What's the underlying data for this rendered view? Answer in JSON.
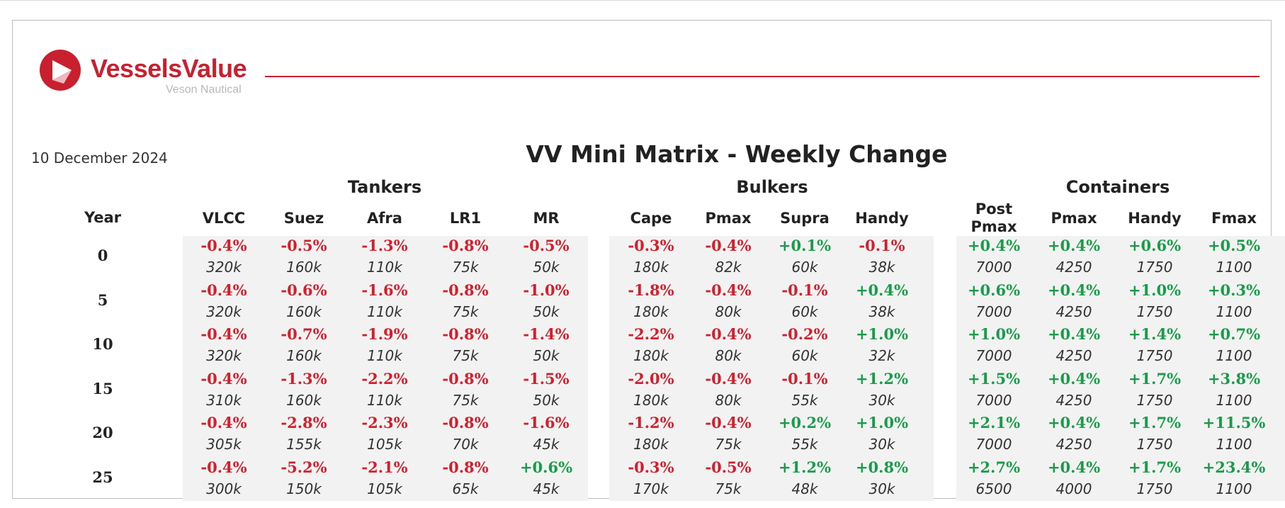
{
  "brand": {
    "name": "VesselsValue",
    "tagline": "Veson Nautical",
    "color": "#c8202f"
  },
  "date": "10 December 2024",
  "title": "VV Mini Matrix - Weekly Change",
  "year_label": "Year",
  "colors": {
    "negative": "#d0202e",
    "positive": "#1a9b4a"
  },
  "groups": [
    {
      "name": "Tankers",
      "columns": [
        {
          "name": "VLCC",
          "rows": [
            {
              "pct": "-0.4%",
              "size": "320k"
            },
            {
              "pct": "-0.4%",
              "size": "320k"
            },
            {
              "pct": "-0.4%",
              "size": "320k"
            },
            {
              "pct": "-0.4%",
              "size": "310k"
            },
            {
              "pct": "-0.4%",
              "size": "305k"
            },
            {
              "pct": "-0.4%",
              "size": "300k"
            }
          ]
        },
        {
          "name": "Suez",
          "rows": [
            {
              "pct": "-0.5%",
              "size": "160k"
            },
            {
              "pct": "-0.6%",
              "size": "160k"
            },
            {
              "pct": "-0.7%",
              "size": "160k"
            },
            {
              "pct": "-1.3%",
              "size": "160k"
            },
            {
              "pct": "-2.8%",
              "size": "155k"
            },
            {
              "pct": "-5.2%",
              "size": "150k"
            }
          ]
        },
        {
          "name": "Afra",
          "rows": [
            {
              "pct": "-1.3%",
              "size": "110k"
            },
            {
              "pct": "-1.6%",
              "size": "110k"
            },
            {
              "pct": "-1.9%",
              "size": "110k"
            },
            {
              "pct": "-2.2%",
              "size": "110k"
            },
            {
              "pct": "-2.3%",
              "size": "105k"
            },
            {
              "pct": "-2.1%",
              "size": "105k"
            }
          ]
        },
        {
          "name": "LR1",
          "rows": [
            {
              "pct": "-0.8%",
              "size": "75k"
            },
            {
              "pct": "-0.8%",
              "size": "75k"
            },
            {
              "pct": "-0.8%",
              "size": "75k"
            },
            {
              "pct": "-0.8%",
              "size": "75k"
            },
            {
              "pct": "-0.8%",
              "size": "70k"
            },
            {
              "pct": "-0.8%",
              "size": "65k"
            }
          ]
        },
        {
          "name": "MR",
          "rows": [
            {
              "pct": "-0.5%",
              "size": "50k"
            },
            {
              "pct": "-1.0%",
              "size": "50k"
            },
            {
              "pct": "-1.4%",
              "size": "50k"
            },
            {
              "pct": "-1.5%",
              "size": "50k"
            },
            {
              "pct": "-1.6%",
              "size": "45k"
            },
            {
              "pct": "+0.6%",
              "size": "45k"
            }
          ]
        }
      ]
    },
    {
      "name": "Bulkers",
      "columns": [
        {
          "name": "Cape",
          "rows": [
            {
              "pct": "-0.3%",
              "size": "180k"
            },
            {
              "pct": "-1.8%",
              "size": "180k"
            },
            {
              "pct": "-2.2%",
              "size": "180k"
            },
            {
              "pct": "-2.0%",
              "size": "180k"
            },
            {
              "pct": "-1.2%",
              "size": "180k"
            },
            {
              "pct": "-0.3%",
              "size": "170k"
            }
          ]
        },
        {
          "name": "Pmax",
          "rows": [
            {
              "pct": "-0.4%",
              "size": "82k"
            },
            {
              "pct": "-0.4%",
              "size": "80k"
            },
            {
              "pct": "-0.4%",
              "size": "80k"
            },
            {
              "pct": "-0.4%",
              "size": "80k"
            },
            {
              "pct": "-0.4%",
              "size": "75k"
            },
            {
              "pct": "-0.5%",
              "size": "75k"
            }
          ]
        },
        {
          "name": "Supra",
          "rows": [
            {
              "pct": "+0.1%",
              "size": "60k"
            },
            {
              "pct": "-0.1%",
              "size": "60k"
            },
            {
              "pct": "-0.2%",
              "size": "60k"
            },
            {
              "pct": "-0.1%",
              "size": "55k"
            },
            {
              "pct": "+0.2%",
              "size": "55k"
            },
            {
              "pct": "+1.2%",
              "size": "48k"
            }
          ]
        },
        {
          "name": "Handy",
          "rows": [
            {
              "pct": "-0.1%",
              "size": "38k"
            },
            {
              "pct": "+0.4%",
              "size": "38k"
            },
            {
              "pct": "+1.0%",
              "size": "32k"
            },
            {
              "pct": "+1.2%",
              "size": "30k"
            },
            {
              "pct": "+1.0%",
              "size": "30k"
            },
            {
              "pct": "+0.8%",
              "size": "30k"
            }
          ]
        }
      ]
    },
    {
      "name": "Containers",
      "columns": [
        {
          "name": "Post Pmax",
          "rows": [
            {
              "pct": "+0.4%",
              "size": "7000"
            },
            {
              "pct": "+0.6%",
              "size": "7000"
            },
            {
              "pct": "+1.0%",
              "size": "7000"
            },
            {
              "pct": "+1.5%",
              "size": "7000"
            },
            {
              "pct": "+2.1%",
              "size": "7000"
            },
            {
              "pct": "+2.7%",
              "size": "6500"
            }
          ]
        },
        {
          "name": "Pmax",
          "rows": [
            {
              "pct": "+0.4%",
              "size": "4250"
            },
            {
              "pct": "+0.4%",
              "size": "4250"
            },
            {
              "pct": "+0.4%",
              "size": "4250"
            },
            {
              "pct": "+0.4%",
              "size": "4250"
            },
            {
              "pct": "+0.4%",
              "size": "4250"
            },
            {
              "pct": "+0.4%",
              "size": "4000"
            }
          ]
        },
        {
          "name": "Handy",
          "rows": [
            {
              "pct": "+0.6%",
              "size": "1750"
            },
            {
              "pct": "+1.0%",
              "size": "1750"
            },
            {
              "pct": "+1.4%",
              "size": "1750"
            },
            {
              "pct": "+1.7%",
              "size": "1750"
            },
            {
              "pct": "+1.7%",
              "size": "1750"
            },
            {
              "pct": "+1.7%",
              "size": "1750"
            }
          ]
        },
        {
          "name": "Fmax",
          "rows": [
            {
              "pct": "+0.5%",
              "size": "1100"
            },
            {
              "pct": "+0.3%",
              "size": "1100"
            },
            {
              "pct": "+0.7%",
              "size": "1100"
            },
            {
              "pct": "+3.8%",
              "size": "1100"
            },
            {
              "pct": "+11.5%",
              "size": "1100"
            },
            {
              "pct": "+23.4%",
              "size": "1100"
            }
          ]
        }
      ]
    }
  ],
  "years": [
    "0",
    "5",
    "10",
    "15",
    "20",
    "25"
  ]
}
